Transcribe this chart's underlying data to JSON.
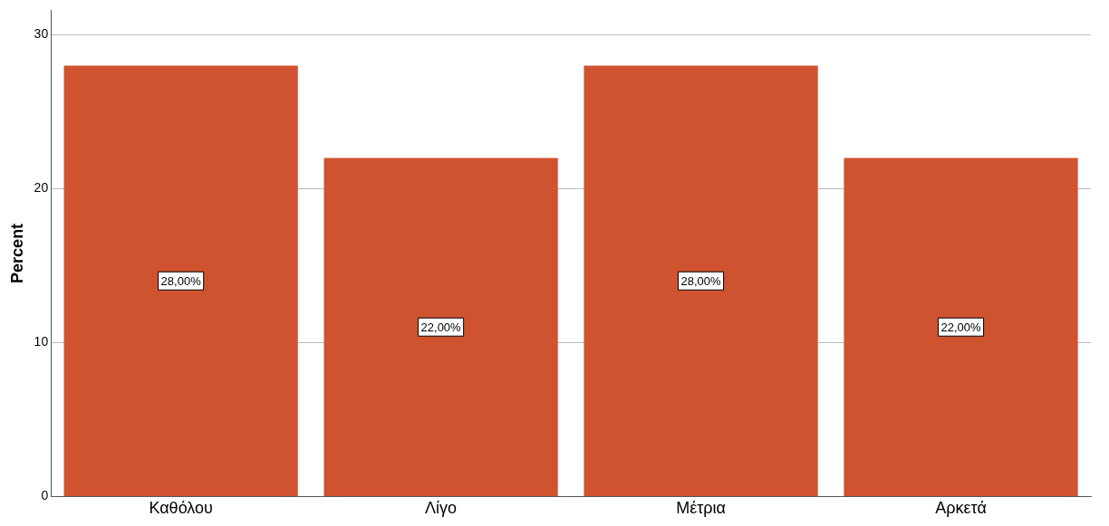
{
  "chart_data": {
    "type": "bar",
    "ylabel": "Percent",
    "categories": [
      "Καθόλου",
      "Λίγο",
      "Μέτρια",
      "Αρκετά"
    ],
    "values": [
      28,
      22,
      28,
      22
    ],
    "value_labels": [
      "28,00%",
      "22,00%",
      "28,00%",
      "22,00%"
    ],
    "color": "#d0532f",
    "ylim": [
      0,
      31.6
    ],
    "yticks": [
      0,
      10,
      20,
      30
    ],
    "grid": "y"
  }
}
